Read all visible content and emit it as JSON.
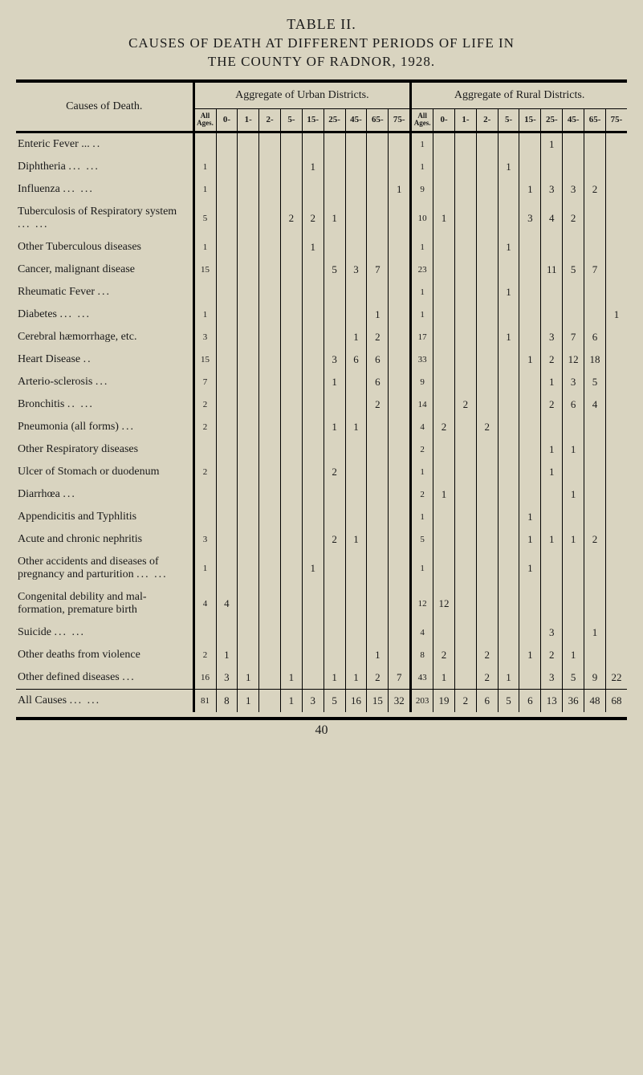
{
  "title": "TABLE II.",
  "subtitle_line1": "CAUSES OF DEATH AT DIFFERENT PERIODS OF LIFE IN",
  "subtitle_line2": "THE COUNTY OF RADNOR, 1928.",
  "causes_header": "Causes of Death.",
  "urban_header": "Aggregate of Urban Districts.",
  "rural_header": "Aggregate of Rural Districts.",
  "all_ages_label": "All Ages.",
  "age_cols": [
    "0-",
    "1-",
    "2-",
    "5-",
    "15-",
    "25-",
    "45-",
    "65-",
    "75-"
  ],
  "rows": [
    {
      "cause": "Enteric Fever ...",
      "dots": "..",
      "u": [
        "",
        "",
        "",
        "",
        "",
        "",
        "",
        "",
        "",
        ""
      ],
      "r": [
        "1",
        "",
        "",
        "",
        "",
        "",
        "1",
        "",
        "",
        ""
      ]
    },
    {
      "cause": "Diphtheria",
      "dots": "...            ...",
      "u": [
        "1",
        "",
        "",
        "",
        "",
        "1",
        "",
        "",
        "",
        ""
      ],
      "r": [
        "1",
        "",
        "",
        "",
        "1",
        "",
        "",
        "",
        "",
        ""
      ]
    },
    {
      "cause": "Influenza",
      "dots": "...            ...",
      "u": [
        "1",
        "",
        "",
        "",
        "",
        "",
        "",
        "",
        "",
        "1"
      ],
      "r": [
        "9",
        "",
        "",
        "",
        "",
        "1",
        "3",
        "3",
        "2",
        ""
      ]
    },
    {
      "cause": "Tuberculosis of Respiratory system",
      "dots": "...            ...",
      "u": [
        "5",
        "",
        "",
        "",
        "2",
        "2",
        "1",
        "",
        "",
        ""
      ],
      "r": [
        "10",
        "1",
        "",
        "",
        "",
        "3",
        "4",
        "2",
        "",
        ""
      ]
    },
    {
      "cause": "Other Tuberculous diseases",
      "dots": "",
      "u": [
        "1",
        "",
        "",
        "",
        "",
        "1",
        "",
        "",
        "",
        ""
      ],
      "r": [
        "1",
        "",
        "",
        "",
        "1",
        "",
        "",
        "",
        "",
        ""
      ]
    },
    {
      "cause": "Cancer, malignant disease",
      "dots": "",
      "u": [
        "15",
        "",
        "",
        "",
        "",
        "",
        "5",
        "3",
        "7",
        ""
      ],
      "r": [
        "23",
        "",
        "",
        "",
        "",
        "",
        "11",
        "5",
        "7",
        ""
      ]
    },
    {
      "cause": "Rheumatic Fever",
      "dots": "...",
      "u": [
        "",
        "",
        "",
        "",
        "",
        "",
        "",
        "",
        "",
        ""
      ],
      "r": [
        "1",
        "",
        "",
        "",
        "1",
        "",
        "",
        "",
        "",
        ""
      ]
    },
    {
      "cause": "Diabetes",
      "dots": "...            ...",
      "u": [
        "1",
        "",
        "",
        "",
        "",
        "",
        "",
        "",
        "1",
        ""
      ],
      "r": [
        "1",
        "",
        "",
        "",
        "",
        "",
        "",
        "",
        "",
        "1"
      ]
    },
    {
      "cause": "Cerebral hæmorrhage, etc.",
      "dots": "",
      "u": [
        "3",
        "",
        "",
        "",
        "",
        "",
        "",
        "1",
        "2",
        ""
      ],
      "r": [
        "17",
        "",
        "",
        "",
        "1",
        "",
        "3",
        "7",
        "6",
        ""
      ]
    },
    {
      "cause": "Heart Disease",
      "dots": "..",
      "u": [
        "15",
        "",
        "",
        "",
        "",
        "",
        "3",
        "6",
        "6",
        ""
      ],
      "r": [
        "33",
        "",
        "",
        "",
        "",
        "1",
        "2",
        "12",
        "18",
        ""
      ]
    },
    {
      "cause": "Arterio-sclerosis",
      "dots": "...",
      "u": [
        "7",
        "",
        "",
        "",
        "",
        "",
        "1",
        "",
        "6",
        ""
      ],
      "r": [
        "9",
        "",
        "",
        "",
        "",
        "",
        "1",
        "3",
        "5",
        ""
      ]
    },
    {
      "cause": "Bronchitis",
      "dots": "..            ...",
      "u": [
        "2",
        "",
        "",
        "",
        "",
        "",
        "",
        "",
        "2",
        ""
      ],
      "r": [
        "14",
        "",
        "2",
        "",
        "",
        "",
        "2",
        "6",
        "4",
        ""
      ]
    },
    {
      "cause": "Pneumonia (all forms)",
      "dots": "...",
      "u": [
        "2",
        "",
        "",
        "",
        "",
        "",
        "1",
        "1",
        "",
        ""
      ],
      "r": [
        "4",
        "2",
        "",
        "2",
        "",
        "",
        "",
        "",
        "",
        ""
      ]
    },
    {
      "cause": "Other Respiratory diseases",
      "dots": "",
      "u": [
        "",
        "",
        "",
        "",
        "",
        "",
        "",
        "",
        "",
        ""
      ],
      "r": [
        "2",
        "",
        "",
        "",
        "",
        "",
        "1",
        "1",
        "",
        ""
      ]
    },
    {
      "cause": "Ulcer of Stomach or duodenum",
      "dots": "",
      "u": [
        "2",
        "",
        "",
        "",
        "",
        "",
        "2",
        "",
        "",
        ""
      ],
      "r": [
        "1",
        "",
        "",
        "",
        "",
        "",
        "1",
        "",
        "",
        ""
      ]
    },
    {
      "cause": "Diarrhœa",
      "dots": "...",
      "u": [
        "",
        "",
        "",
        "",
        "",
        "",
        "",
        "",
        "",
        ""
      ],
      "r": [
        "2",
        "1",
        "",
        "",
        "",
        "",
        "",
        "1",
        "",
        ""
      ]
    },
    {
      "cause": "Appendicitis and Typhlitis",
      "dots": "",
      "u": [
        "",
        "",
        "",
        "",
        "",
        "",
        "",
        "",
        "",
        ""
      ],
      "r": [
        "1",
        "",
        "",
        "",
        "",
        "1",
        "",
        "",
        "",
        ""
      ]
    },
    {
      "cause": "Acute and chronic nephritis",
      "dots": "",
      "u": [
        "3",
        "",
        "",
        "",
        "",
        "",
        "2",
        "1",
        "",
        ""
      ],
      "r": [
        "5",
        "",
        "",
        "",
        "",
        "1",
        "1",
        "1",
        "2",
        ""
      ]
    },
    {
      "cause": "Other accidents and diseases of pregnancy and parturition",
      "dots": "...      ...",
      "u": [
        "1",
        "",
        "",
        "",
        "",
        "1",
        "",
        "",
        "",
        ""
      ],
      "r": [
        "1",
        "",
        "",
        "",
        "",
        "1",
        "",
        "",
        "",
        ""
      ]
    },
    {
      "cause": "Congenital debility and mal- formation, premature birth",
      "dots": "",
      "u": [
        "4",
        "4",
        "",
        "",
        "",
        "",
        "",
        "",
        "",
        ""
      ],
      "r": [
        "12",
        "12",
        "",
        "",
        "",
        "",
        "",
        "",
        "",
        ""
      ]
    },
    {
      "cause": "Suicide",
      "dots": "...            ...",
      "u": [
        "",
        "",
        "",
        "",
        "",
        "",
        "",
        "",
        "",
        ""
      ],
      "r": [
        "4",
        "",
        "",
        "",
        "",
        "",
        "3",
        "",
        "1",
        ""
      ]
    },
    {
      "cause": "Other deaths from violence",
      "dots": "",
      "u": [
        "2",
        "1",
        "",
        "",
        "",
        "",
        "",
        "",
        "1",
        ""
      ],
      "r": [
        "8",
        "2",
        "",
        "2",
        "",
        "1",
        "2",
        "1",
        "",
        ""
      ]
    },
    {
      "cause": "Other defined diseases",
      "dots": "...",
      "u": [
        "16",
        "3",
        "1",
        "",
        "1",
        "",
        "1",
        "1",
        "2",
        "7"
      ],
      "r": [
        "43",
        "1",
        "",
        "2",
        "1",
        "",
        "3",
        "5",
        "9",
        "22"
      ]
    }
  ],
  "totals": {
    "cause": "All Causes",
    "dots": "...            ...",
    "u": [
      "81",
      "8",
      "1",
      "",
      "1",
      "3",
      "5",
      "16",
      "15",
      "32"
    ],
    "r": [
      "203",
      "19",
      "2",
      "6",
      "5",
      "6",
      "13",
      "36",
      "48",
      "68"
    ]
  },
  "page_number": "40"
}
